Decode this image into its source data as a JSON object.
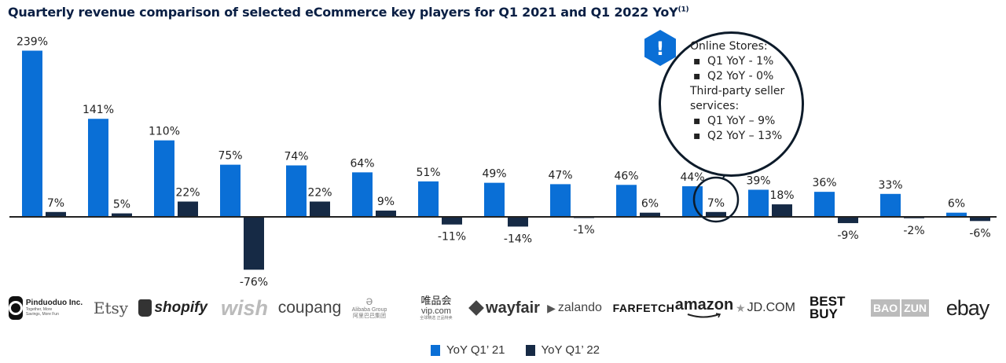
{
  "title": "Quarterly revenue comparison of selected eCommerce key players for Q1 2021 and Q1 2022 YoY",
  "title_sup": "(1)",
  "colors": {
    "q121": "#0a6fd6",
    "q122": "#162a45",
    "axis": "#222222",
    "text": "#222222"
  },
  "chart_data": {
    "type": "bar",
    "categories": [
      "Pinduoduo Inc.",
      "Etsy",
      "shopify",
      "wish",
      "coupang",
      "Alibaba Group",
      "vip.com",
      "wayfair",
      "zalando",
      "FARFETCH",
      "amazon",
      "JD.COM",
      "BEST BUY",
      "BAOZUN",
      "ebay"
    ],
    "series": [
      {
        "name": "YoY Q1’ 21",
        "values": [
          239,
          141,
          110,
          75,
          74,
          64,
          51,
          49,
          47,
          46,
          44,
          39,
          36,
          33,
          6
        ],
        "labels": [
          "239%",
          "141%",
          "110%",
          "75%",
          "74%",
          "64%",
          "51%",
          "49%",
          "47%",
          "46%",
          "44%",
          "39%",
          "36%",
          "33%",
          "6%"
        ]
      },
      {
        "name": "YoY Q1’ 22",
        "values": [
          7,
          5,
          22,
          -76,
          22,
          9,
          -11,
          -14,
          -1,
          6,
          7,
          18,
          -9,
          -2,
          -6
        ],
        "labels": [
          "7%",
          "5%",
          "22%",
          "-76%",
          "22%",
          "9%",
          "-11%",
          "-14%",
          "-1%",
          "6%",
          "7%",
          "18%",
          "-9%",
          "-2%",
          "-6%"
        ]
      }
    ],
    "ylim": [
      -76,
      239
    ],
    "xlabel": "",
    "ylabel": "",
    "grid": false,
    "legend": "bottom-center",
    "highlight": "amazon YoY Q1’ 22"
  },
  "logos": {
    "pinduoduo": {
      "name": "Pinduoduo Inc.",
      "sub": "Together, More Savings, More Fun"
    },
    "etsy": "Etsy",
    "shopify": "shopify",
    "wish": "wish",
    "coupang": "coupang",
    "alibaba": {
      "name": "Alibaba Group",
      "cn": "阿里巴巴集团"
    },
    "vip": {
      "cn": "唯品会",
      "name": "vip.com",
      "sub": "全球精选 正品特卖"
    },
    "wayfair": "wayfair",
    "zalando": "zalando",
    "farfetch": "FARFETCH",
    "amazon": "amazon",
    "jd": "JD.COM",
    "bestbuy": {
      "line1": "BEST",
      "line2": "BUY"
    },
    "baozun": {
      "a": "BAO",
      "b": "ZUN"
    },
    "ebay": "ebay"
  },
  "callout": {
    "badge": "!",
    "heading1": "Online Stores:",
    "online": [
      "Q1 YoY - 1%",
      "Q2 YoY - 0%"
    ],
    "heading2a": "Third-party seller",
    "heading2b": "services:",
    "thirdparty": [
      "Q1 YoY – 9%",
      "Q2 YoY – 13%"
    ]
  },
  "legend": {
    "q121": "YoY Q1’ 21",
    "q122": "YoY Q1’ 22"
  }
}
